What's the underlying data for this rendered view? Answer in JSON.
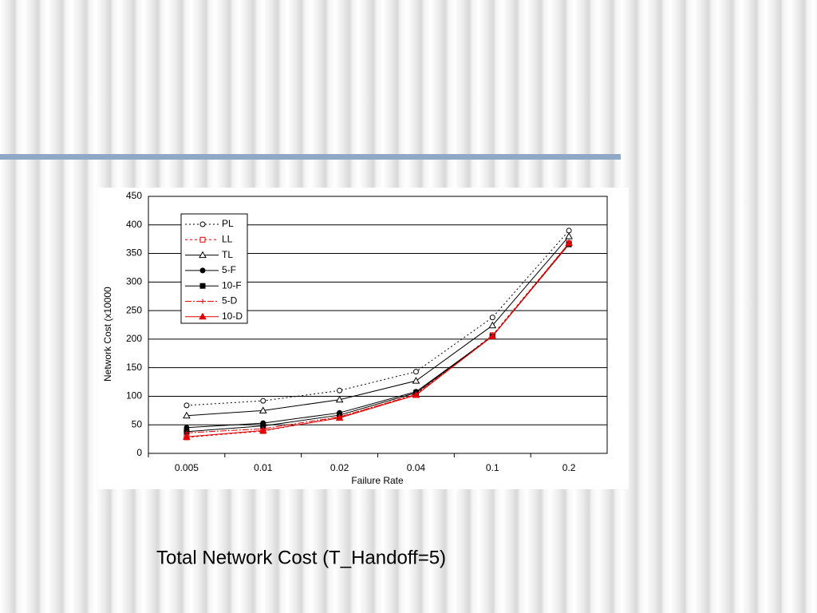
{
  "chart_data": {
    "type": "line",
    "x_label": "Failure Rate",
    "y_label": "Network Cost (x10000",
    "categories": [
      "0.005",
      "0.01",
      "0.02",
      "0.04",
      "0.1",
      "0.2"
    ],
    "ylim": [
      0,
      450
    ],
    "yticks": [
      0,
      50,
      100,
      150,
      200,
      250,
      300,
      350,
      400,
      450
    ],
    "grid": true,
    "series": [
      {
        "name": "PL",
        "color": "#000000",
        "dash": "2,3",
        "marker": "open-circle",
        "values": [
          84,
          92,
          110,
          143,
          238,
          390
        ]
      },
      {
        "name": "LL",
        "color": "#e00000",
        "dash": "3,3",
        "marker": "open-square",
        "values": [
          28,
          39,
          63,
          104,
          207,
          368
        ]
      },
      {
        "name": "TL",
        "color": "#000000",
        "dash": "none",
        "marker": "open-triangle",
        "values": [
          66,
          75,
          94,
          127,
          224,
          380
        ]
      },
      {
        "name": "5-F",
        "color": "#000000",
        "dash": "none",
        "marker": "circle",
        "values": [
          45,
          53,
          71,
          108,
          205,
          366
        ]
      },
      {
        "name": "10-F",
        "color": "#000000",
        "dash": "none",
        "marker": "square",
        "values": [
          38,
          48,
          67,
          106,
          205,
          366
        ]
      },
      {
        "name": "5-D",
        "color": "#e00000",
        "dash": "8,2,2,2",
        "marker": "plus",
        "values": [
          36,
          43,
          64,
          103,
          205,
          366
        ]
      },
      {
        "name": "10-D",
        "color": "#e00000",
        "dash": "none",
        "marker": "triangle",
        "values": [
          29,
          40,
          62,
          102,
          205,
          368
        ]
      }
    ]
  },
  "caption": "Total Network Cost (T_Handoff=5)"
}
